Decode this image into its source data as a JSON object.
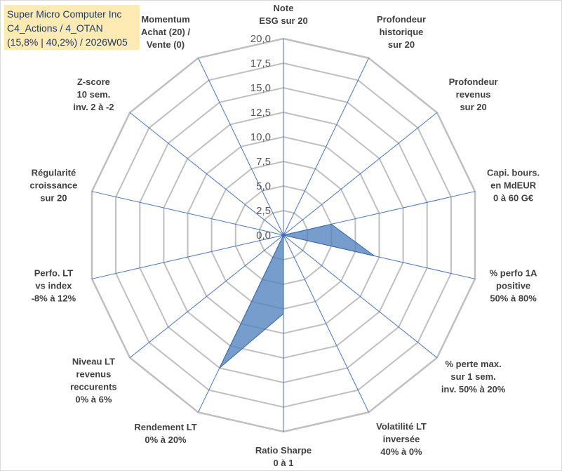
{
  "title_box": {
    "line1": "Super Micro Computer Inc",
    "line2": "C4_Actions / 4_OTAN",
    "line3": "(15,8% | 40,2%) / 2026W05"
  },
  "colors": {
    "title_bg": "#fdebb3",
    "title_text": "#1f3864",
    "grid": "#bfbfbf",
    "axis_line": "#4472c4",
    "series_fill": "#4f81bd",
    "series_stroke": "#3a66a8"
  },
  "chart_data": {
    "type": "radar",
    "rlim": [
      0,
      20
    ],
    "tick_labels": [
      "0,0",
      "2,5",
      "5,0",
      "7,5",
      "10,0",
      "12,5",
      "15,0",
      "17,5",
      "20,0"
    ],
    "gridlines": true,
    "legend": "none",
    "axes": [
      {
        "id": "note-esg",
        "lines": [
          "Note",
          "ESG sur 20"
        ]
      },
      {
        "id": "profondeur-historique",
        "lines": [
          "Profondeur",
          "historique",
          "sur 20"
        ]
      },
      {
        "id": "profondeur-revenus",
        "lines": [
          "Profondeur",
          "revenus",
          "sur 20"
        ]
      },
      {
        "id": "capi-bours",
        "lines": [
          "Capi. bours.",
          "en MdEUR",
          "0 à 60 G€"
        ]
      },
      {
        "id": "perfo-1a",
        "lines": [
          "% perfo 1A",
          "positive",
          "50% à 80%"
        ]
      },
      {
        "id": "perte-max",
        "lines": [
          "% perte max.",
          "sur 1 sem.",
          "inv. 50% à 20%"
        ]
      },
      {
        "id": "volatilite",
        "lines": [
          "Volatilité LT",
          "inversée",
          "40% à 0%"
        ]
      },
      {
        "id": "ratio-sharpe",
        "lines": [
          "Ratio Sharpe",
          "0 à 1"
        ]
      },
      {
        "id": "rendement-lt",
        "lines": [
          "Rendement LT",
          "0% à 20%"
        ]
      },
      {
        "id": "niveau-lt",
        "lines": [
          "Niveau LT",
          "revenus",
          "reccurents",
          "0% à 6%"
        ]
      },
      {
        "id": "perfo-lt",
        "lines": [
          "Perfo. LT",
          "vs index",
          "-8% à 12%"
        ]
      },
      {
        "id": "regularite",
        "lines": [
          "Régularité",
          "croissance",
          "sur 20"
        ]
      },
      {
        "id": "z-score",
        "lines": [
          "Z-score",
          "10 sem.",
          "inv. 2 à -2"
        ]
      },
      {
        "id": "momentum",
        "lines": [
          "Momentum",
          "Achat (20) /",
          "Vente (0)"
        ]
      }
    ],
    "series": [
      {
        "name": "Super Micro Computer Inc",
        "values": [
          0,
          0,
          0,
          5.0,
          9.5,
          0,
          0,
          8.0,
          15.0,
          0,
          0,
          0,
          0,
          0
        ]
      }
    ]
  }
}
